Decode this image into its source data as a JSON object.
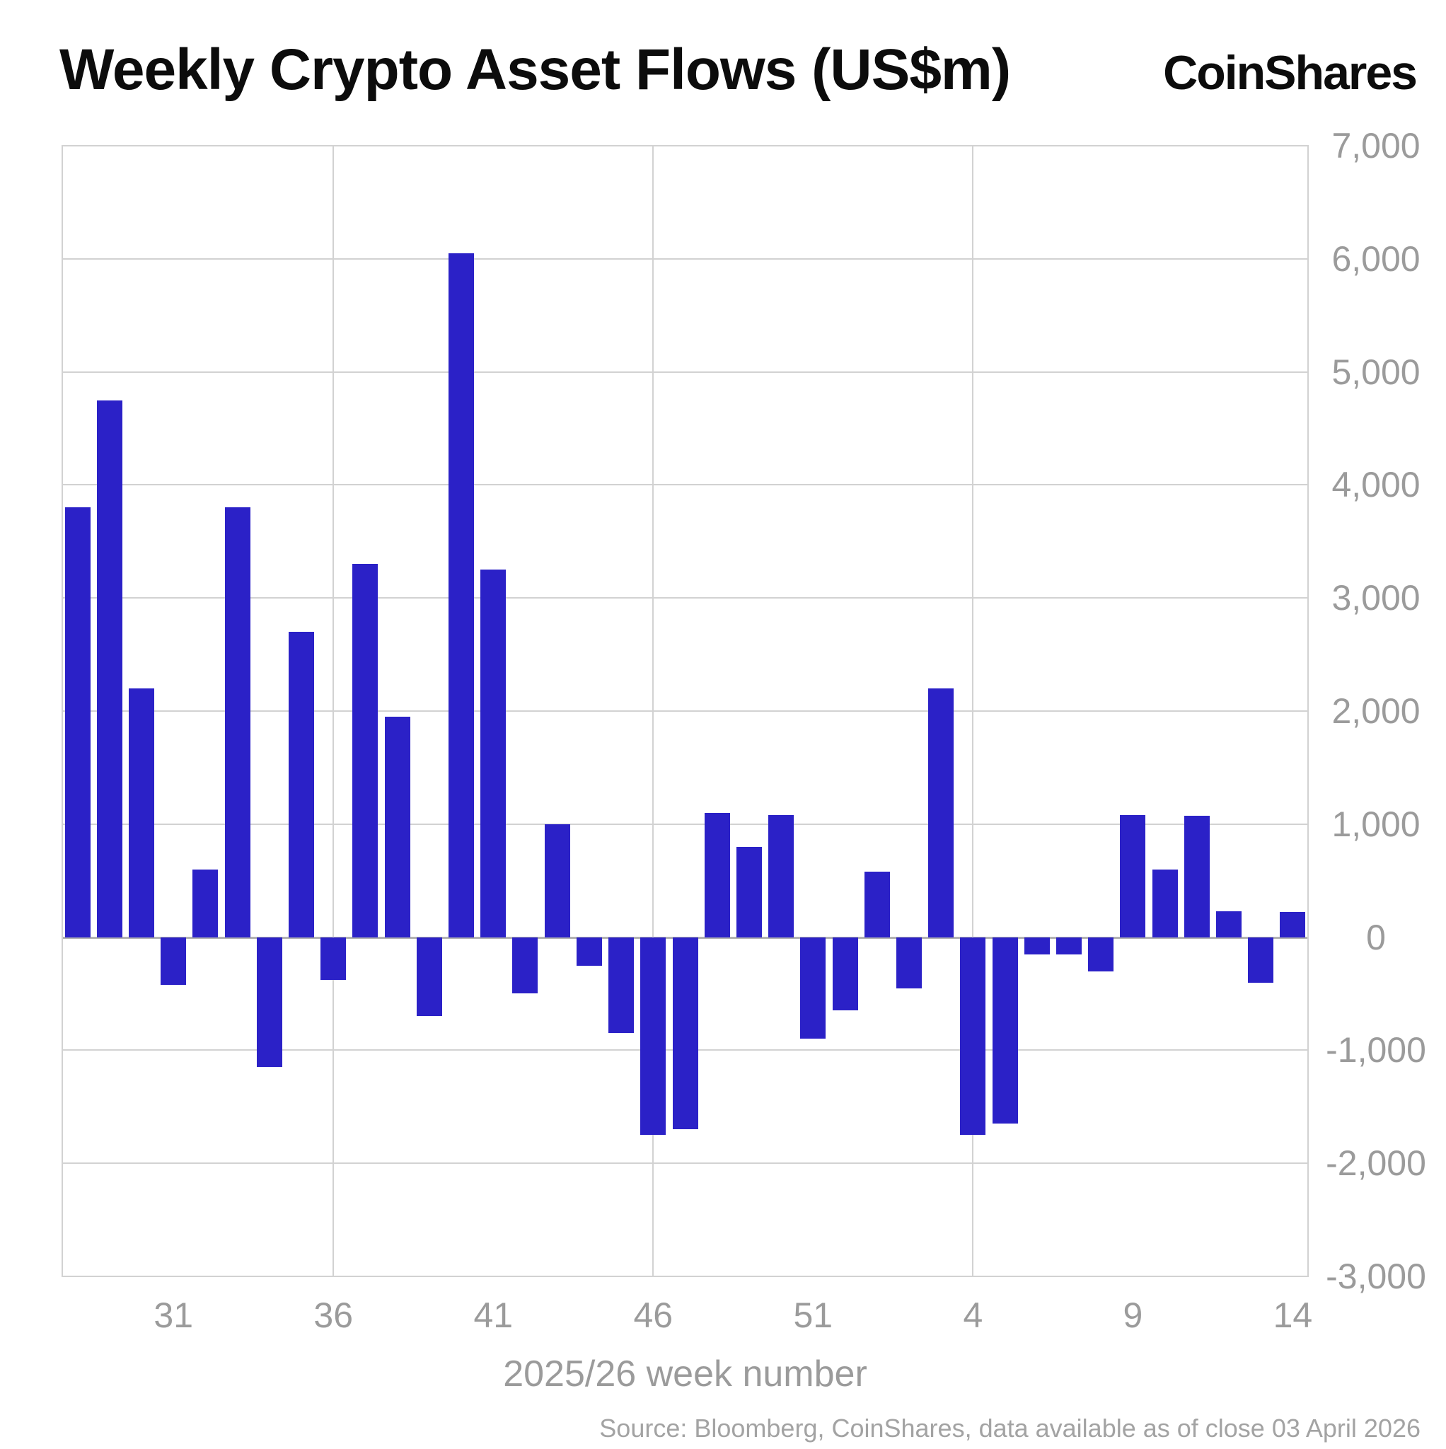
{
  "header": {
    "title": "Weekly Crypto Asset Flows (US$m)",
    "brand": "CoinShares"
  },
  "footer": {
    "source": "Source: Bloomberg, CoinShares, data available as of close 03 April 2026"
  },
  "chart_data": {
    "type": "bar",
    "title": "Weekly Crypto Asset Flows (US$m)",
    "xlabel": "2025/26 week number",
    "ylabel": "",
    "ylim": [
      -3000,
      7000
    ],
    "grid": true,
    "legend_position": "none",
    "categories": [
      "28",
      "29",
      "30",
      "31",
      "32",
      "33",
      "34",
      "35",
      "36",
      "37",
      "38",
      "39",
      "40",
      "41",
      "42",
      "43",
      "44",
      "45",
      "46",
      "47",
      "48",
      "49",
      "50",
      "51",
      "52",
      "1",
      "2",
      "3",
      "4",
      "5",
      "6",
      "7",
      "8",
      "9",
      "10",
      "11",
      "12",
      "13",
      "14"
    ],
    "values": [
      3800,
      4750,
      2200,
      -420,
      600,
      3800,
      -1150,
      2700,
      -380,
      3300,
      1950,
      -700,
      6050,
      3250,
      -500,
      1000,
      -250,
      -850,
      -1750,
      -1700,
      1100,
      800,
      1080,
      -900,
      -650,
      580,
      -450,
      2200,
      -1750,
      -1650,
      -150,
      -150,
      -300,
      1080,
      600,
      1075,
      230,
      -400,
      225
    ],
    "y_ticks": [
      7000,
      6000,
      5000,
      4000,
      3000,
      2000,
      1000,
      0,
      -1000,
      -2000,
      -3000
    ],
    "y_tick_labels": [
      "7,000",
      "6,000",
      "5,000",
      "4,000",
      "3,000",
      "2,000",
      "1,000",
      "0",
      "-1,000",
      "-2,000",
      "-3,000"
    ],
    "x_tick_labels": [
      "31",
      "36",
      "41",
      "46",
      "51",
      "4",
      "9",
      "14"
    ],
    "x_tick_indices": [
      3,
      8,
      13,
      18,
      23,
      28,
      33,
      38
    ],
    "grid_vline_indices": [
      8,
      18,
      28
    ],
    "bar_color": "#2b21c7",
    "grid_color": "#d2d2d2",
    "axis_label_color": "#9b9b9b"
  }
}
